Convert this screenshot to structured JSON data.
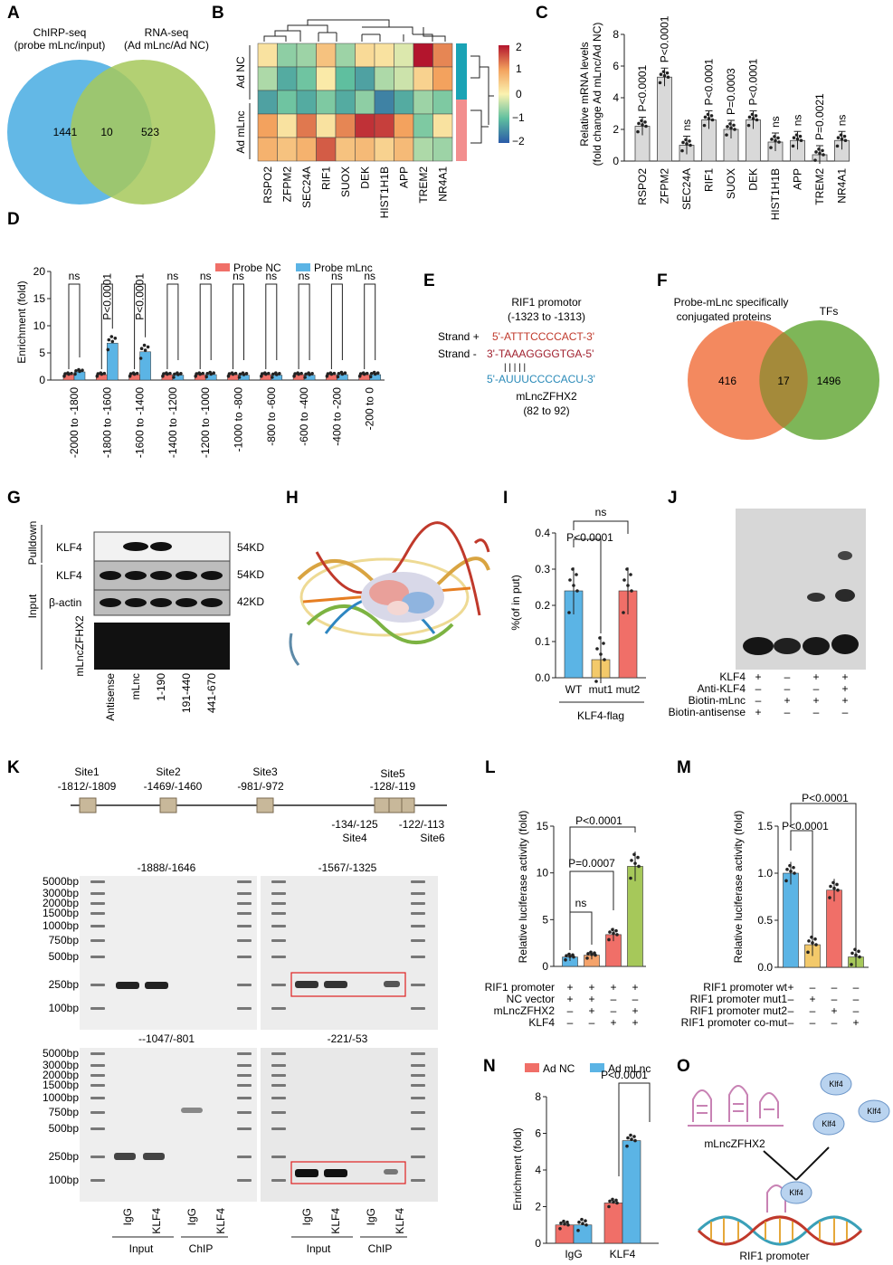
{
  "panels": [
    "A",
    "B",
    "C",
    "D",
    "E",
    "F",
    "G",
    "H",
    "I",
    "J",
    "K",
    "L",
    "M",
    "N",
    "O"
  ],
  "colors": {
    "blue": "#5bb4e5",
    "green": "#a6c85a",
    "pink": "#f06f68",
    "orange": "#f5a36b",
    "yellow": "#f3c96a",
    "teal": "#7fbf6a"
  },
  "venn_a": {
    "left_title": [
      "ChIRP-seq",
      "(probe mLnc/input)"
    ],
    "right_title": [
      "RNA-seq",
      "(Ad mLnc/Ad NC)"
    ],
    "left_only": "1441",
    "overlap": "10",
    "right_only": "523"
  },
  "heatmap_b": {
    "genes": [
      "RSPO2",
      "ZFPM2",
      "SEC24A",
      "RIF1",
      "SUOX",
      "DEK",
      "HIST1H1B",
      "APP",
      "TREM2",
      "NR4A1"
    ],
    "groups": [
      "Ad NC",
      "Ad mLnc"
    ],
    "scale_ticks": [
      "2",
      "1",
      "0",
      "−1",
      "−2"
    ],
    "values": [
      [
        0.2,
        -0.7,
        -0.6,
        0.6,
        -0.6,
        0.3,
        0.2,
        -0.2,
        2.0,
        1.2
      ],
      [
        -0.5,
        -1.2,
        -0.9,
        0.1,
        -1.0,
        -1.3,
        -0.5,
        -0.3,
        0.4,
        1.0
      ],
      [
        -1.3,
        -0.9,
        -1.2,
        -0.8,
        -1.2,
        -0.7,
        -1.6,
        -1.2,
        -0.6,
        -0.8
      ],
      [
        1.0,
        0.2,
        1.3,
        0.2,
        1.2,
        1.8,
        1.7,
        1.0,
        -0.8,
        0.2
      ],
      [
        0.8,
        0.6,
        0.8,
        1.5,
        0.6,
        0.7,
        0.4,
        0.7,
        -0.5,
        -0.6
      ]
    ]
  },
  "chart_c": {
    "ylabel": [
      "Relative mRNA levels",
      "(fold change Ad mLnc/Ad NC)"
    ],
    "categories": [
      "RSPO2",
      "ZFPM2",
      "SEC24A",
      "RIF1",
      "SUOX",
      "DEK",
      "HIST1H1B",
      "APP",
      "TREM2",
      "NR4A1"
    ],
    "values": [
      2.2,
      5.3,
      1.0,
      2.6,
      2.0,
      2.6,
      1.2,
      1.3,
      0.4,
      1.3
    ],
    "sig": [
      "P<0.0001",
      "P<0.0001",
      "ns",
      "P<0.0001",
      "P=0.0003",
      "P<0.0001",
      "ns",
      "ns",
      "P=0.0021",
      "ns"
    ],
    "yticks": [
      "0",
      "2",
      "4",
      "6",
      "8"
    ],
    "ylim": [
      0,
      8
    ]
  },
  "chart_d": {
    "ylabel": "Enrichment (fold)",
    "legend": [
      "Probe NC",
      "Probe mLnc"
    ],
    "categories": [
      "-2000 to -1800",
      "-1800 to -1600",
      "-1600 to -1400",
      "-1400 to -1200",
      "-1200 to -1000",
      "-1000 to -800",
      "-800 to -600",
      "-600 to -400",
      "-400 to -200",
      "-200 to 0"
    ],
    "probe_nc": [
      1.0,
      1.0,
      1.0,
      1.0,
      1.0,
      1.0,
      1.0,
      1.0,
      1.0,
      1.0
    ],
    "probe_mlnc": [
      1.5,
      6.8,
      5.2,
      0.9,
      1.0,
      0.9,
      0.9,
      0.9,
      1.0,
      1.0
    ],
    "sig": [
      "ns",
      "P<0.0001",
      "P<0.0001",
      "ns",
      "ns",
      "ns",
      "ns",
      "ns",
      "ns",
      "ns"
    ],
    "yticks": [
      "0",
      "5",
      "10",
      "15",
      "20"
    ],
    "ylim": [
      0,
      20
    ]
  },
  "panel_e": {
    "title": [
      "RIF1 promotor",
      "(-1323 to -1313)"
    ],
    "strand_plus_label": "Strand +",
    "strand_plus": "5'-ATTTCCCCACT-3'",
    "strand_minus_label": "Strand -",
    "strand_minus": "3'-TAAAGGGGTGA-5'",
    "bonds": "| | | | |",
    "rna": "5'-AUUUCCCCACU-3'",
    "rna_name": [
      "mLncZFHX2",
      "(82 to 92)"
    ]
  },
  "venn_f": {
    "left_title": [
      "Probe-mLnc specifically",
      "conjugated proteins"
    ],
    "right_title": "TFs",
    "left_only": "416",
    "overlap": "17",
    "right_only": "1496"
  },
  "blot_g": {
    "pulldown_label": "Pulldown",
    "input_label": "Input",
    "rows": [
      "KLF4",
      "KLF4",
      "β-actin",
      "mLncZFHX2"
    ],
    "sizes": [
      "54KD",
      "54KD",
      "42KD"
    ],
    "lanes": [
      "Antisense",
      "mLnc",
      "1-190",
      "191-440",
      "441-670"
    ]
  },
  "chart_i": {
    "ylabel": "%(of in put)",
    "categories": [
      "WT",
      "mut1",
      "mut2"
    ],
    "values": [
      0.24,
      0.05,
      0.24
    ],
    "group_label": "KLF4-flag",
    "sig": [
      "P<0.0001",
      "ns"
    ],
    "yticks": [
      "0.0",
      "0.1",
      "0.2",
      "0.3",
      "0.4"
    ],
    "ylim": [
      0,
      0.4
    ]
  },
  "blot_j": {
    "rows": [
      "KLF4",
      "Anti-KLF4",
      "Biotin-mLnc",
      "Biotin-antisense"
    ],
    "marks": [
      [
        "+",
        "–",
        "+",
        "+"
      ],
      [
        "–",
        "–",
        "–",
        "+"
      ],
      [
        "–",
        "+",
        "+",
        "+"
      ],
      [
        "+",
        "–",
        "–",
        "–"
      ]
    ]
  },
  "map_k": {
    "sites": [
      "Site1",
      "Site2",
      "Site3",
      "Site5"
    ],
    "site_ranges": [
      "-1812/-1809",
      "-1469/-1460",
      "-981/-972",
      "-128/-119"
    ],
    "lower_sites": [
      "Site4",
      "Site6"
    ],
    "lower_ranges": [
      "-134/-125",
      "-122/-113"
    ],
    "gel_titles": [
      "-1888/-1646",
      "-1567/-1325",
      "--1047/-801",
      "-221/-53"
    ],
    "ladder": [
      "5000bp",
      "3000bp",
      "2000bp",
      "1500bp",
      "1000bp",
      "750bp",
      "500bp",
      "250bp",
      "100bp"
    ],
    "lanes": [
      "IgG",
      "KLF4",
      "IgG",
      "KLF4"
    ],
    "groups": [
      "Input",
      "ChIP"
    ]
  },
  "chart_l": {
    "ylabel": "Relative luciferase activity (fold)",
    "values": [
      1.0,
      1.2,
      3.4,
      10.7
    ],
    "yticks": [
      "0",
      "5",
      "10",
      "15"
    ],
    "ylim": [
      0,
      15
    ],
    "sig": [
      "ns",
      "P=0.0007",
      "P<0.0001"
    ],
    "rows": [
      "RIF1 promoter",
      "NC vector",
      "mLncZFHX2",
      "KLF4"
    ],
    "marks": [
      [
        "+",
        "+",
        "+",
        "+"
      ],
      [
        "+",
        "+",
        "–",
        "–"
      ],
      [
        "–",
        "+",
        "–",
        "+"
      ],
      [
        "–",
        "–",
        "+",
        "+"
      ]
    ]
  },
  "chart_m": {
    "ylabel": "Relative luciferase activity (fold)",
    "values": [
      1.0,
      0.24,
      0.82,
      0.11
    ],
    "yticks": [
      "0.0",
      "0.5",
      "1.0",
      "1.5"
    ],
    "ylim": [
      0,
      1.5
    ],
    "sig": [
      "P<0.0001",
      "P<0.0001"
    ],
    "rows": [
      "RIF1 promoter wt",
      "RIF1 promoter mut1",
      "RIF1 promoter mut2",
      "RIF1 promoter co-mut"
    ],
    "marks": [
      [
        "+",
        "–",
        "–",
        "–"
      ],
      [
        "–",
        "+",
        "–",
        "–"
      ],
      [
        "–",
        "–",
        "+",
        "–"
      ],
      [
        "–",
        "–",
        "–",
        "+"
      ]
    ]
  },
  "chart_n": {
    "ylabel": "Enrichment (fold)",
    "legend": [
      "Ad NC",
      "Ad mLnc"
    ],
    "categories": [
      "IgG",
      "KLF4"
    ],
    "ad_nc": [
      1.0,
      2.2
    ],
    "ad_mlnc": [
      1.0,
      5.6
    ],
    "sig": "P<0.0001",
    "yticks": [
      "0",
      "2",
      "4",
      "6",
      "8"
    ],
    "ylim": [
      0,
      8
    ]
  },
  "diagram_o": {
    "protein": "Klf4",
    "rna": "mLncZFHX2",
    "dna": "RIF1 promoter"
  }
}
